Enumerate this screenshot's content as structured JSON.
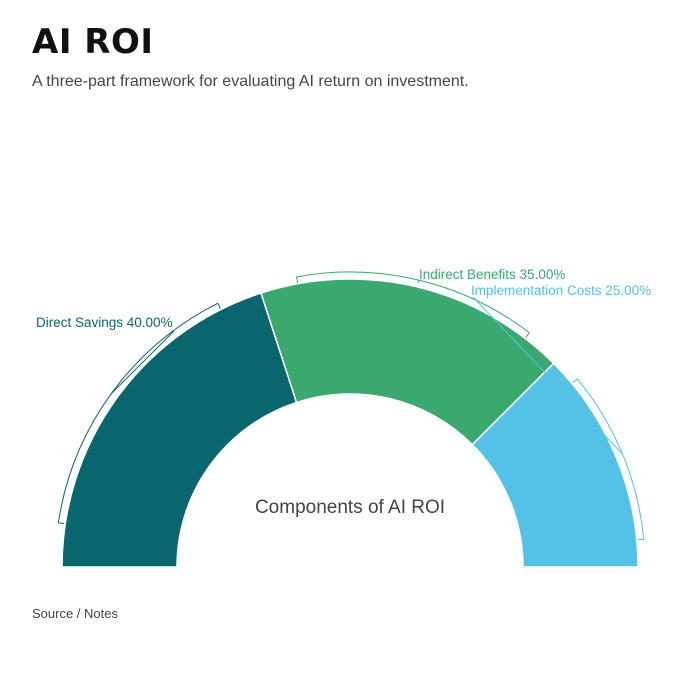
{
  "header": {
    "title": "AI ROI",
    "subtitle": "A three-part framework for evaluating AI return on investment."
  },
  "footer": {
    "source_label": "Source / Notes"
  },
  "chart_data": {
    "type": "pie",
    "variant": "semicircle-donut",
    "center_label": "Components of AI ROI",
    "slices": [
      {
        "name": "Direct Savings",
        "value": 40.0,
        "label": "Direct Savings 40.00%",
        "color": "#09666f"
      },
      {
        "name": "Indirect Benefits",
        "value": 35.0,
        "label": "Indirect Benefits 35.00%",
        "color": "#3aa86f"
      },
      {
        "name": "Implementation Costs",
        "value": 25.0,
        "label": "Implementation Costs 25.00%",
        "color": "#54c2e6"
      }
    ]
  }
}
